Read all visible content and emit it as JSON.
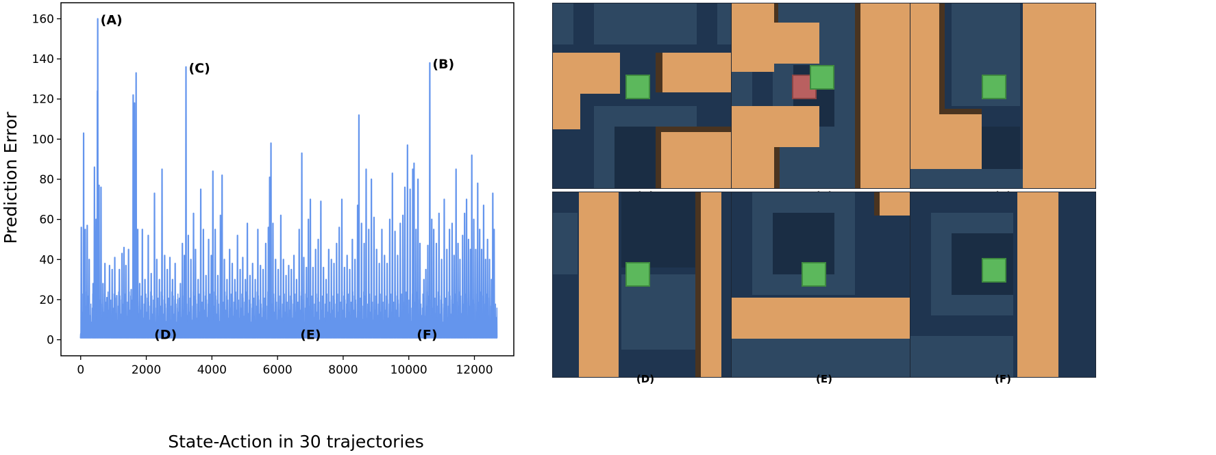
{
  "chart_data": {
    "type": "line",
    "xlabel": "State-Action in 30 trajectories",
    "ylabel": "Prediction Error",
    "xlim": [
      -600,
      13200
    ],
    "ylim": [
      -8,
      168
    ],
    "xticks": [
      0,
      2000,
      4000,
      6000,
      8000,
      10000,
      12000
    ],
    "xtick_labels": [
      "0",
      "2000",
      "4000",
      "6000",
      "8000",
      "10000",
      "12000"
    ],
    "yticks": [
      0,
      20,
      40,
      60,
      80,
      100,
      120,
      140,
      160
    ],
    "ytick_labels": [
      "0",
      "20",
      "40",
      "60",
      "80",
      "100",
      "120",
      "140",
      "160"
    ],
    "grid": false,
    "line_color": "#6495ED",
    "x_max": 12700,
    "baseline": 1,
    "peaks": [
      [
        20,
        56
      ],
      [
        90,
        103
      ],
      [
        140,
        55
      ],
      [
        200,
        57
      ],
      [
        260,
        40
      ],
      [
        320,
        8
      ],
      [
        380,
        28
      ],
      [
        420,
        86
      ],
      [
        470,
        60
      ],
      [
        510,
        124
      ],
      [
        520,
        160
      ],
      [
        560,
        77
      ],
      [
        620,
        76
      ],
      [
        680,
        28
      ],
      [
        740,
        38
      ],
      [
        800,
        21
      ],
      [
        880,
        37
      ],
      [
        960,
        35
      ],
      [
        1040,
        41
      ],
      [
        1100,
        22
      ],
      [
        1180,
        35
      ],
      [
        1260,
        43
      ],
      [
        1320,
        46
      ],
      [
        1380,
        37
      ],
      [
        1460,
        45
      ],
      [
        1540,
        25
      ],
      [
        1600,
        122
      ],
      [
        1640,
        118
      ],
      [
        1690,
        133
      ],
      [
        1740,
        55
      ],
      [
        1800,
        28
      ],
      [
        1880,
        55
      ],
      [
        1960,
        30
      ],
      [
        2060,
        52
      ],
      [
        2150,
        33
      ],
      [
        2250,
        73
      ],
      [
        2320,
        40
      ],
      [
        2400,
        30
      ],
      [
        2480,
        85
      ],
      [
        2560,
        42
      ],
      [
        2640,
        35
      ],
      [
        2720,
        41
      ],
      [
        2800,
        30
      ],
      [
        2880,
        38
      ],
      [
        2960,
        20
      ],
      [
        3040,
        28
      ],
      [
        3100,
        48
      ],
      [
        3160,
        42
      ],
      [
        3210,
        136
      ],
      [
        3280,
        52
      ],
      [
        3360,
        40
      ],
      [
        3440,
        63
      ],
      [
        3500,
        45
      ],
      [
        3580,
        30
      ],
      [
        3660,
        75
      ],
      [
        3740,
        55
      ],
      [
        3820,
        32
      ],
      [
        3900,
        50
      ],
      [
        3980,
        42
      ],
      [
        4030,
        84
      ],
      [
        4100,
        55
      ],
      [
        4180,
        32
      ],
      [
        4260,
        62
      ],
      [
        4310,
        82
      ],
      [
        4380,
        40
      ],
      [
        4460,
        30
      ],
      [
        4540,
        45
      ],
      [
        4620,
        38
      ],
      [
        4700,
        30
      ],
      [
        4780,
        52
      ],
      [
        4860,
        35
      ],
      [
        4940,
        41
      ],
      [
        5020,
        30
      ],
      [
        5080,
        58
      ],
      [
        5160,
        32
      ],
      [
        5240,
        38
      ],
      [
        5320,
        30
      ],
      [
        5400,
        55
      ],
      [
        5480,
        37
      ],
      [
        5560,
        35
      ],
      [
        5640,
        48
      ],
      [
        5720,
        56
      ],
      [
        5760,
        81
      ],
      [
        5800,
        98
      ],
      [
        5860,
        58
      ],
      [
        5940,
        40
      ],
      [
        6020,
        35
      ],
      [
        6100,
        62
      ],
      [
        6180,
        40
      ],
      [
        6260,
        32
      ],
      [
        6340,
        37
      ],
      [
        6420,
        35
      ],
      [
        6500,
        42
      ],
      [
        6580,
        30
      ],
      [
        6660,
        55
      ],
      [
        6740,
        93
      ],
      [
        6800,
        41
      ],
      [
        6880,
        36
      ],
      [
        6940,
        60
      ],
      [
        7000,
        70
      ],
      [
        7080,
        36
      ],
      [
        7160,
        45
      ],
      [
        7240,
        50
      ],
      [
        7320,
        69
      ],
      [
        7400,
        36
      ],
      [
        7480,
        30
      ],
      [
        7560,
        45
      ],
      [
        7640,
        40
      ],
      [
        7720,
        38
      ],
      [
        7800,
        48
      ],
      [
        7880,
        56
      ],
      [
        7960,
        70
      ],
      [
        8040,
        36
      ],
      [
        8120,
        42
      ],
      [
        8200,
        35
      ],
      [
        8280,
        50
      ],
      [
        8360,
        40
      ],
      [
        8440,
        67
      ],
      [
        8480,
        112
      ],
      [
        8560,
        58
      ],
      [
        8640,
        48
      ],
      [
        8700,
        85
      ],
      [
        8780,
        55
      ],
      [
        8860,
        80
      ],
      [
        8940,
        61
      ],
      [
        9020,
        45
      ],
      [
        9100,
        38
      ],
      [
        9180,
        55
      ],
      [
        9260,
        42
      ],
      [
        9340,
        38
      ],
      [
        9420,
        60
      ],
      [
        9500,
        83
      ],
      [
        9580,
        54
      ],
      [
        9660,
        42
      ],
      [
        9740,
        58
      ],
      [
        9820,
        62
      ],
      [
        9880,
        76
      ],
      [
        9960,
        97
      ],
      [
        10040,
        75
      ],
      [
        10120,
        85
      ],
      [
        10160,
        88
      ],
      [
        10220,
        55
      ],
      [
        10280,
        80
      ],
      [
        10340,
        48
      ],
      [
        10400,
        12
      ],
      [
        10460,
        30
      ],
      [
        10520,
        35
      ],
      [
        10580,
        47
      ],
      [
        10640,
        138
      ],
      [
        10700,
        60
      ],
      [
        10760,
        55
      ],
      [
        10840,
        48
      ],
      [
        10920,
        63
      ],
      [
        11000,
        40
      ],
      [
        11080,
        70
      ],
      [
        11160,
        45
      ],
      [
        11240,
        55
      ],
      [
        11320,
        58
      ],
      [
        11380,
        42
      ],
      [
        11440,
        85
      ],
      [
        11500,
        48
      ],
      [
        11560,
        40
      ],
      [
        11640,
        52
      ],
      [
        11700,
        63
      ],
      [
        11760,
        70
      ],
      [
        11820,
        50
      ],
      [
        11880,
        45
      ],
      [
        11920,
        92
      ],
      [
        11980,
        60
      ],
      [
        12040,
        45
      ],
      [
        12100,
        78
      ],
      [
        12160,
        55
      ],
      [
        12220,
        45
      ],
      [
        12280,
        67
      ],
      [
        12340,
        40
      ],
      [
        12400,
        50
      ],
      [
        12460,
        40
      ],
      [
        12520,
        30
      ],
      [
        12560,
        73
      ],
      [
        12600,
        55
      ],
      [
        12660,
        11
      ]
    ],
    "annotations": [
      {
        "label": "(A)",
        "x": 520,
        "y": 160
      },
      {
        "label": "(C)",
        "x": 3210,
        "y": 136
      },
      {
        "label": "(B)",
        "x": 10640,
        "y": 138
      },
      {
        "label": "(D)",
        "x": 2700,
        "y": 1
      },
      {
        "label": "(E)",
        "x": 7150,
        "y": 1
      },
      {
        "label": "(F)",
        "x": 10700,
        "y": 1
      }
    ]
  },
  "panels": [
    {
      "label": "(A)"
    },
    {
      "label": "(B)"
    },
    {
      "label": "(C)"
    },
    {
      "label": "(D)"
    },
    {
      "label": "(E)"
    },
    {
      "label": "(F)"
    }
  ]
}
